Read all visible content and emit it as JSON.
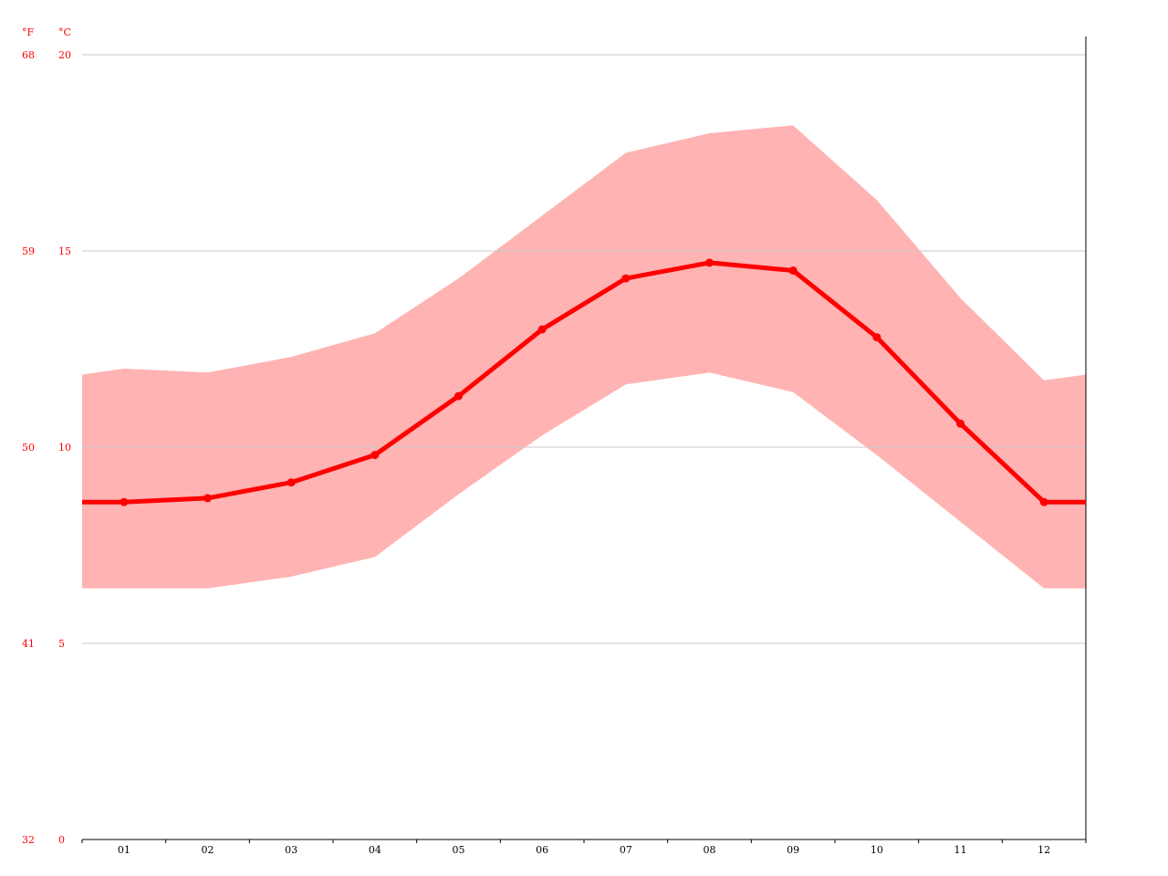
{
  "chart_data": {
    "type": "line",
    "categories": [
      "01",
      "02",
      "03",
      "04",
      "05",
      "06",
      "07",
      "08",
      "09",
      "10",
      "11",
      "12"
    ],
    "series": [
      {
        "values": [
          8.6,
          8.7,
          9.1,
          9.8,
          11.3,
          13.0,
          14.3,
          14.7,
          14.5,
          12.8,
          10.6,
          8.6
        ]
      },
      {
        "values": [
          12.0,
          11.9,
          12.3,
          12.9,
          14.3,
          15.9,
          17.5,
          18.0,
          18.2,
          16.3,
          13.8,
          11.7
        ]
      },
      {
        "values": [
          6.4,
          6.4,
          6.7,
          7.2,
          8.8,
          10.3,
          11.6,
          11.9,
          11.4,
          9.8,
          8.1,
          6.4
        ]
      }
    ],
    "units": {
      "primary": "°C",
      "secondary": "°F"
    },
    "y_ticks_c": [
      "0",
      "5",
      "10",
      "15",
      "20"
    ],
    "y_ticks_f": [
      "32",
      "41",
      "50",
      "59",
      "68"
    ],
    "ylim": [
      0,
      20
    ],
    "grid": true
  },
  "colors": {
    "line": "#ff0000",
    "band": "#ffb3b3",
    "gridline": "#c8c8c8",
    "axis": "#000000",
    "label": "#ff0000"
  }
}
